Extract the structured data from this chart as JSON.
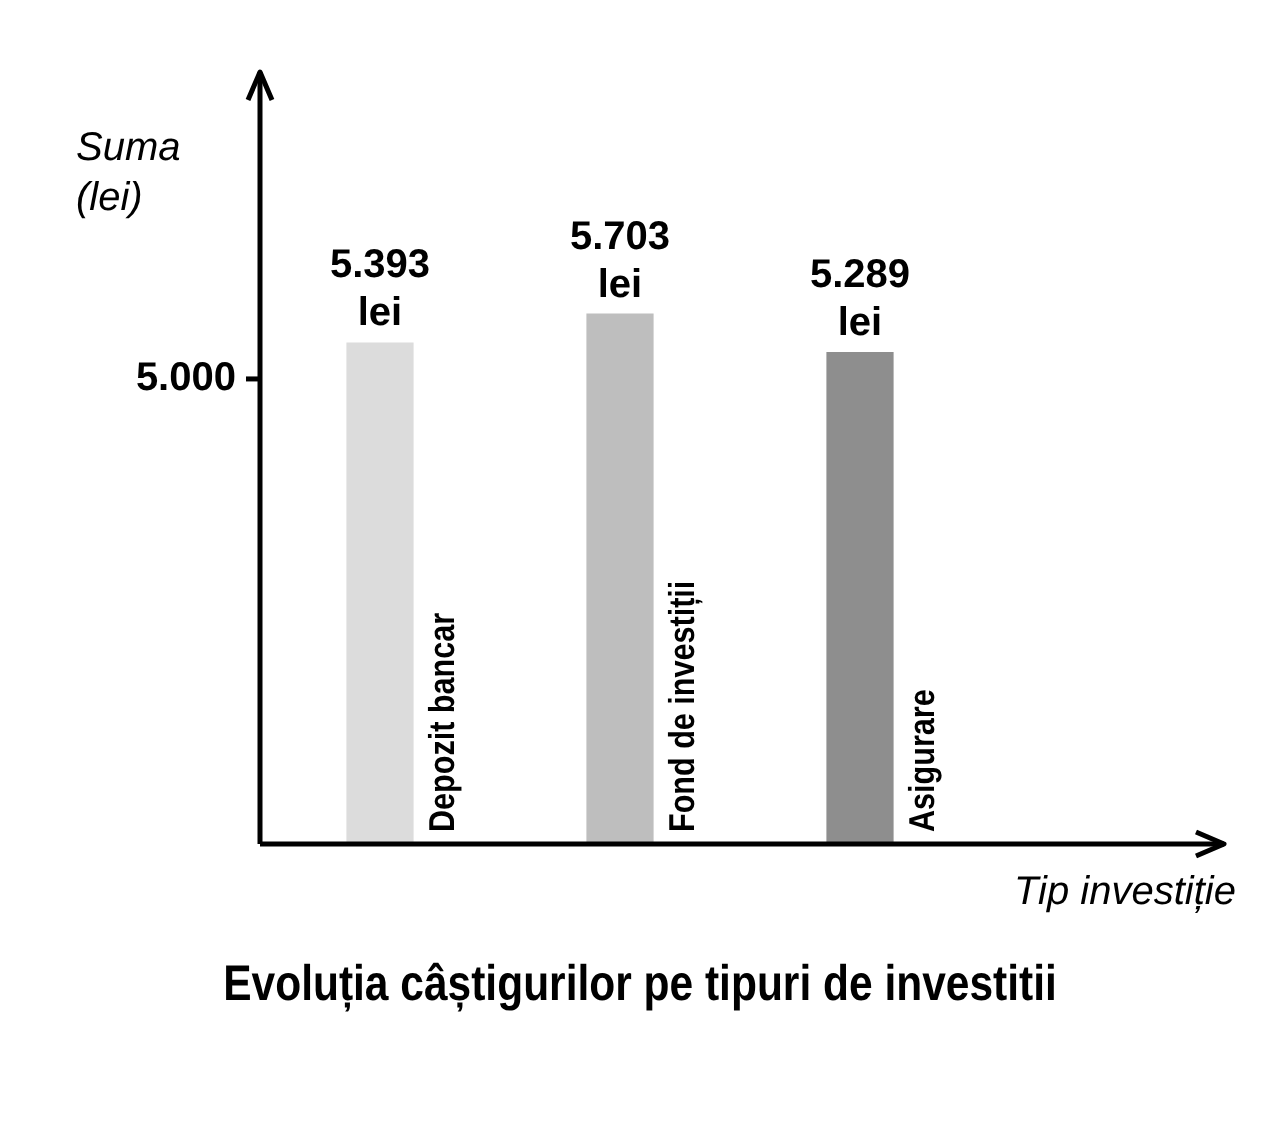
{
  "chart_data": {
    "type": "bar",
    "title": "Evoluția câștigurilor pe tipuri de investitii",
    "xlabel": "Tip investiție",
    "ylabel": "Suma\n(lei)",
    "categories": [
      "Depozit bancar",
      "Fond de investiții",
      "Asigurare"
    ],
    "values": [
      5393,
      5703,
      5289
    ],
    "colors": [
      "#dcdcdc",
      "#bebebe",
      "#8e8e8e"
    ],
    "value_labels": [
      "5.393\nlei",
      "5.703\nlei",
      "5.289\nlei"
    ],
    "ylim": [
      0,
      8300
    ],
    "yticks": [
      {
        "value": 5000,
        "label": "5.000"
      }
    ],
    "grid": false,
    "legend": false
  }
}
